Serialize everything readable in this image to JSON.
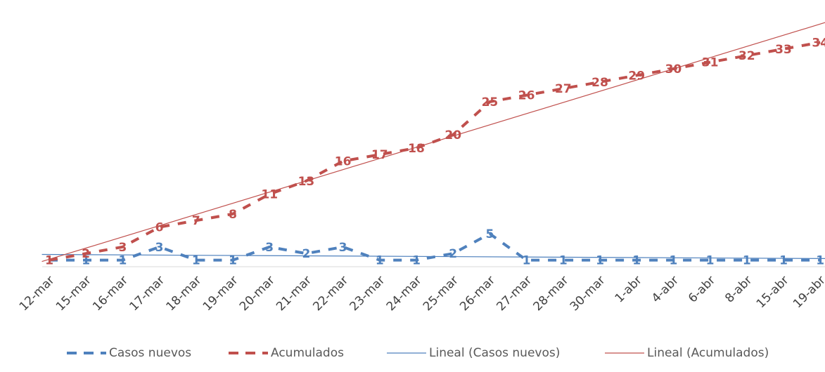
{
  "chart_data": {
    "type": "line",
    "categories": [
      "12-mar",
      "15-mar",
      "16-mar",
      "17-mar",
      "18-mar",
      "19-mar",
      "20-mar",
      "21-mar",
      "22-mar",
      "23-mar",
      "24-mar",
      "25-mar",
      "26-mar",
      "27-mar",
      "28-mar",
      "30-mar",
      "1-abr",
      "4-abr",
      "6-abr",
      "8-abr",
      "15-abr",
      "19-abr"
    ],
    "series": [
      {
        "name": "Casos nuevos",
        "color": "#4f81bd",
        "style": "dashed",
        "values": [
          1,
          1,
          1,
          3,
          1,
          1,
          3,
          2,
          3,
          1,
          1,
          2,
          5,
          1,
          1,
          1,
          1,
          1,
          1,
          1,
          1,
          1
        ]
      },
      {
        "name": "Acumulados",
        "color": "#c0504d",
        "style": "dashed",
        "values": [
          1,
          2,
          3,
          6,
          7,
          8,
          11,
          13,
          16,
          17,
          18,
          20,
          25,
          26,
          27,
          28,
          29,
          30,
          31,
          32,
          33,
          34
        ]
      }
    ],
    "trendlines": [
      {
        "name": "Lineal (Casos nuevos)",
        "color": "#4f81bd",
        "style": "solid",
        "of": "Casos nuevos"
      },
      {
        "name": "Lineal (Acumulados)",
        "color": "#c0504d",
        "style": "solid",
        "of": "Acumulados"
      }
    ],
    "title": "",
    "xlabel": "",
    "ylabel": "",
    "ylim": [
      0,
      36
    ],
    "grid": false,
    "legend_position": "bottom"
  }
}
